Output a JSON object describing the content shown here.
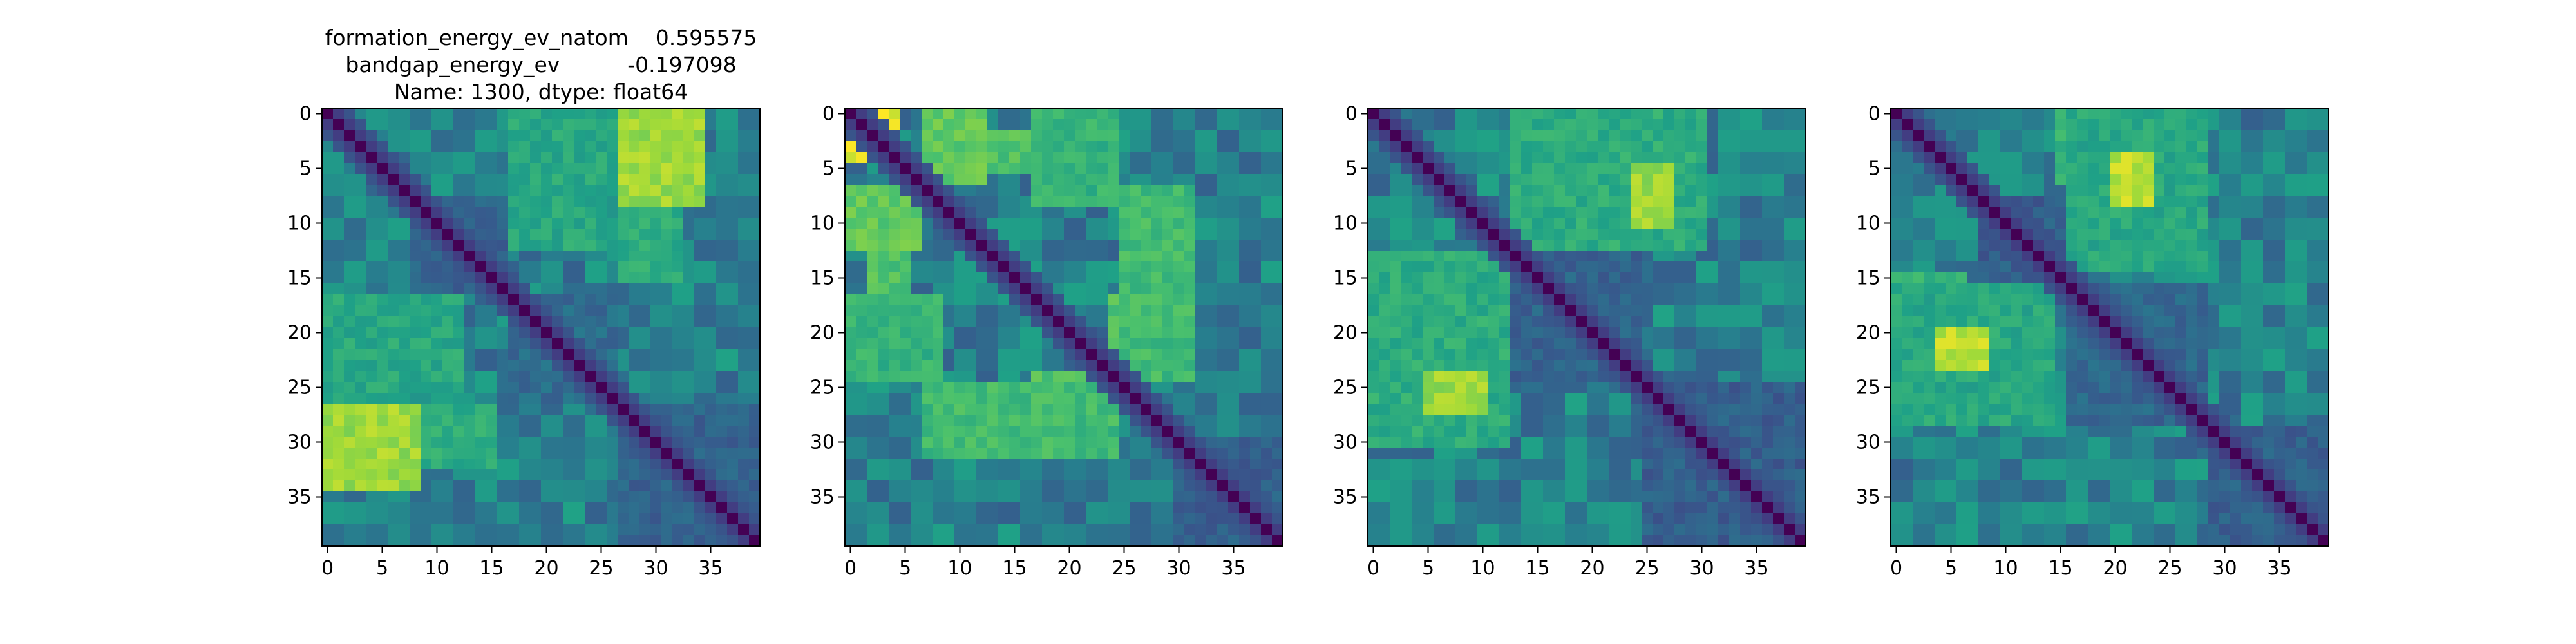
{
  "title_lines": [
    "formation_energy_ev_natom    0.595575",
    "bandgap_energy_ev          -0.197098",
    "Name: 1300, dtype: float64"
  ],
  "colormap": [
    "#440154",
    "#46327e",
    "#365c8d",
    "#277f8e",
    "#1fa187",
    "#4ac16d",
    "#a0da39",
    "#fde725"
  ],
  "chart_data": [
    {
      "type": "heatmap",
      "title": "formation_energy_ev_natom    0.595575\nbandgap_energy_ev          -0.197098\nName: 1300, dtype: float64",
      "size": 40,
      "xticks": [
        0,
        5,
        10,
        15,
        20,
        25,
        30,
        35
      ],
      "yticks": [
        0,
        5,
        10,
        15,
        20,
        25,
        30,
        35
      ],
      "xlim": [
        -0.5,
        39.5
      ],
      "ylim": [
        39.5,
        -0.5
      ],
      "value_range": [
        0,
        1
      ],
      "blocks": [
        {
          "rows": [
            0,
            4
          ],
          "cols": [
            17,
            26
          ],
          "v": 0.62
        },
        {
          "rows": [
            3,
            6
          ],
          "cols": [
            27,
            34
          ],
          "v": 0.9
        },
        {
          "rows": [
            17,
            25
          ],
          "cols": [
            0,
            12
          ],
          "v": 0.6
        },
        {
          "rows": [
            27,
            34
          ],
          "cols": [
            0,
            8
          ],
          "v": 0.85
        },
        {
          "rows": [
            27,
            32
          ],
          "cols": [
            9,
            15
          ],
          "v": 0.62
        },
        {
          "rows": [
            17,
            25
          ],
          "cols": [
            17,
            26
          ],
          "v": 0.35
        },
        {
          "rows": [
            27,
            39
          ],
          "cols": [
            27,
            39
          ],
          "v": 0.32
        },
        {
          "rows": [
            8,
            16
          ],
          "cols": [
            8,
            16
          ],
          "v": 0.32
        }
      ]
    },
    {
      "type": "heatmap",
      "title": "",
      "size": 40,
      "xticks": [
        0,
        5,
        10,
        15,
        20,
        25,
        30,
        35
      ],
      "yticks": [
        0,
        5,
        10,
        15,
        20,
        25,
        30,
        35
      ],
      "xlim": [
        -0.5,
        39.5
      ],
      "ylim": [
        39.5,
        -0.5
      ],
      "value_range": [
        0,
        1
      ],
      "blocks": [
        {
          "rows": [
            0,
            3
          ],
          "cols": [
            0,
            4
          ],
          "v": 0.95
        },
        {
          "rows": [
            2,
            5
          ],
          "cols": [
            7,
            24
          ],
          "v": 0.72
        },
        {
          "rows": [
            7,
            12
          ],
          "cols": [
            0,
            6
          ],
          "v": 0.75
        },
        {
          "rows": [
            8,
            15
          ],
          "cols": [
            25,
            31
          ],
          "v": 0.62
        },
        {
          "rows": [
            17,
            24
          ],
          "cols": [
            0,
            8
          ],
          "v": 0.65
        },
        {
          "rows": [
            17,
            22
          ],
          "cols": [
            24,
            31
          ],
          "v": 0.72
        },
        {
          "rows": [
            25,
            31
          ],
          "cols": [
            7,
            24
          ],
          "v": 0.68
        },
        {
          "rows": [
            30,
            39
          ],
          "cols": [
            31,
            39
          ],
          "v": 0.3
        }
      ]
    },
    {
      "type": "heatmap",
      "title": "",
      "size": 40,
      "xticks": [
        0,
        5,
        10,
        15,
        20,
        25,
        30,
        35
      ],
      "yticks": [
        0,
        5,
        10,
        15,
        20,
        25,
        30,
        35
      ],
      "xlim": [
        -0.5,
        39.5
      ],
      "ylim": [
        39.5,
        -0.5
      ],
      "value_range": [
        0,
        1
      ],
      "blocks": [
        {
          "rows": [
            0,
            12
          ],
          "cols": [
            13,
            30
          ],
          "v": 0.62
        },
        {
          "rows": [
            4,
            6
          ],
          "cols": [
            24,
            29
          ],
          "v": 0.9
        },
        {
          "rows": [
            9,
            12
          ],
          "cols": [
            24,
            27
          ],
          "v": 0.85
        },
        {
          "rows": [
            13,
            30
          ],
          "cols": [
            0,
            12
          ],
          "v": 0.62
        },
        {
          "rows": [
            24,
            27
          ],
          "cols": [
            5,
            10
          ],
          "v": 0.85
        },
        {
          "rows": [
            13,
            24
          ],
          "cols": [
            13,
            24
          ],
          "v": 0.32
        },
        {
          "rows": [
            25,
            39
          ],
          "cols": [
            25,
            39
          ],
          "v": 0.3
        }
      ]
    },
    {
      "type": "heatmap",
      "title": "",
      "size": 40,
      "xticks": [
        0,
        5,
        10,
        15,
        20,
        25,
        30,
        35
      ],
      "yticks": [
        0,
        5,
        10,
        15,
        20,
        25,
        30,
        35
      ],
      "xlim": [
        -0.5,
        39.5
      ],
      "ylim": [
        39.5,
        -0.5
      ],
      "value_range": [
        0,
        1
      ],
      "blocks": [
        {
          "rows": [
            0,
            6
          ],
          "cols": [
            15,
            28
          ],
          "v": 0.65
        },
        {
          "rows": [
            4,
            7
          ],
          "cols": [
            21,
            23
          ],
          "v": 0.9
        },
        {
          "rows": [
            11,
            14
          ],
          "cols": [
            16,
            28
          ],
          "v": 0.6
        },
        {
          "rows": [
            16,
            28
          ],
          "cols": [
            0,
            12
          ],
          "v": 0.6
        },
        {
          "rows": [
            20,
            23
          ],
          "cols": [
            4,
            8
          ],
          "v": 0.9
        },
        {
          "rows": [
            8,
            15
          ],
          "cols": [
            8,
            15
          ],
          "v": 0.3
        },
        {
          "rows": [
            16,
            28
          ],
          "cols": [
            16,
            28
          ],
          "v": 0.33
        },
        {
          "rows": [
            29,
            39
          ],
          "cols": [
            29,
            39
          ],
          "v": 0.3
        }
      ]
    }
  ]
}
